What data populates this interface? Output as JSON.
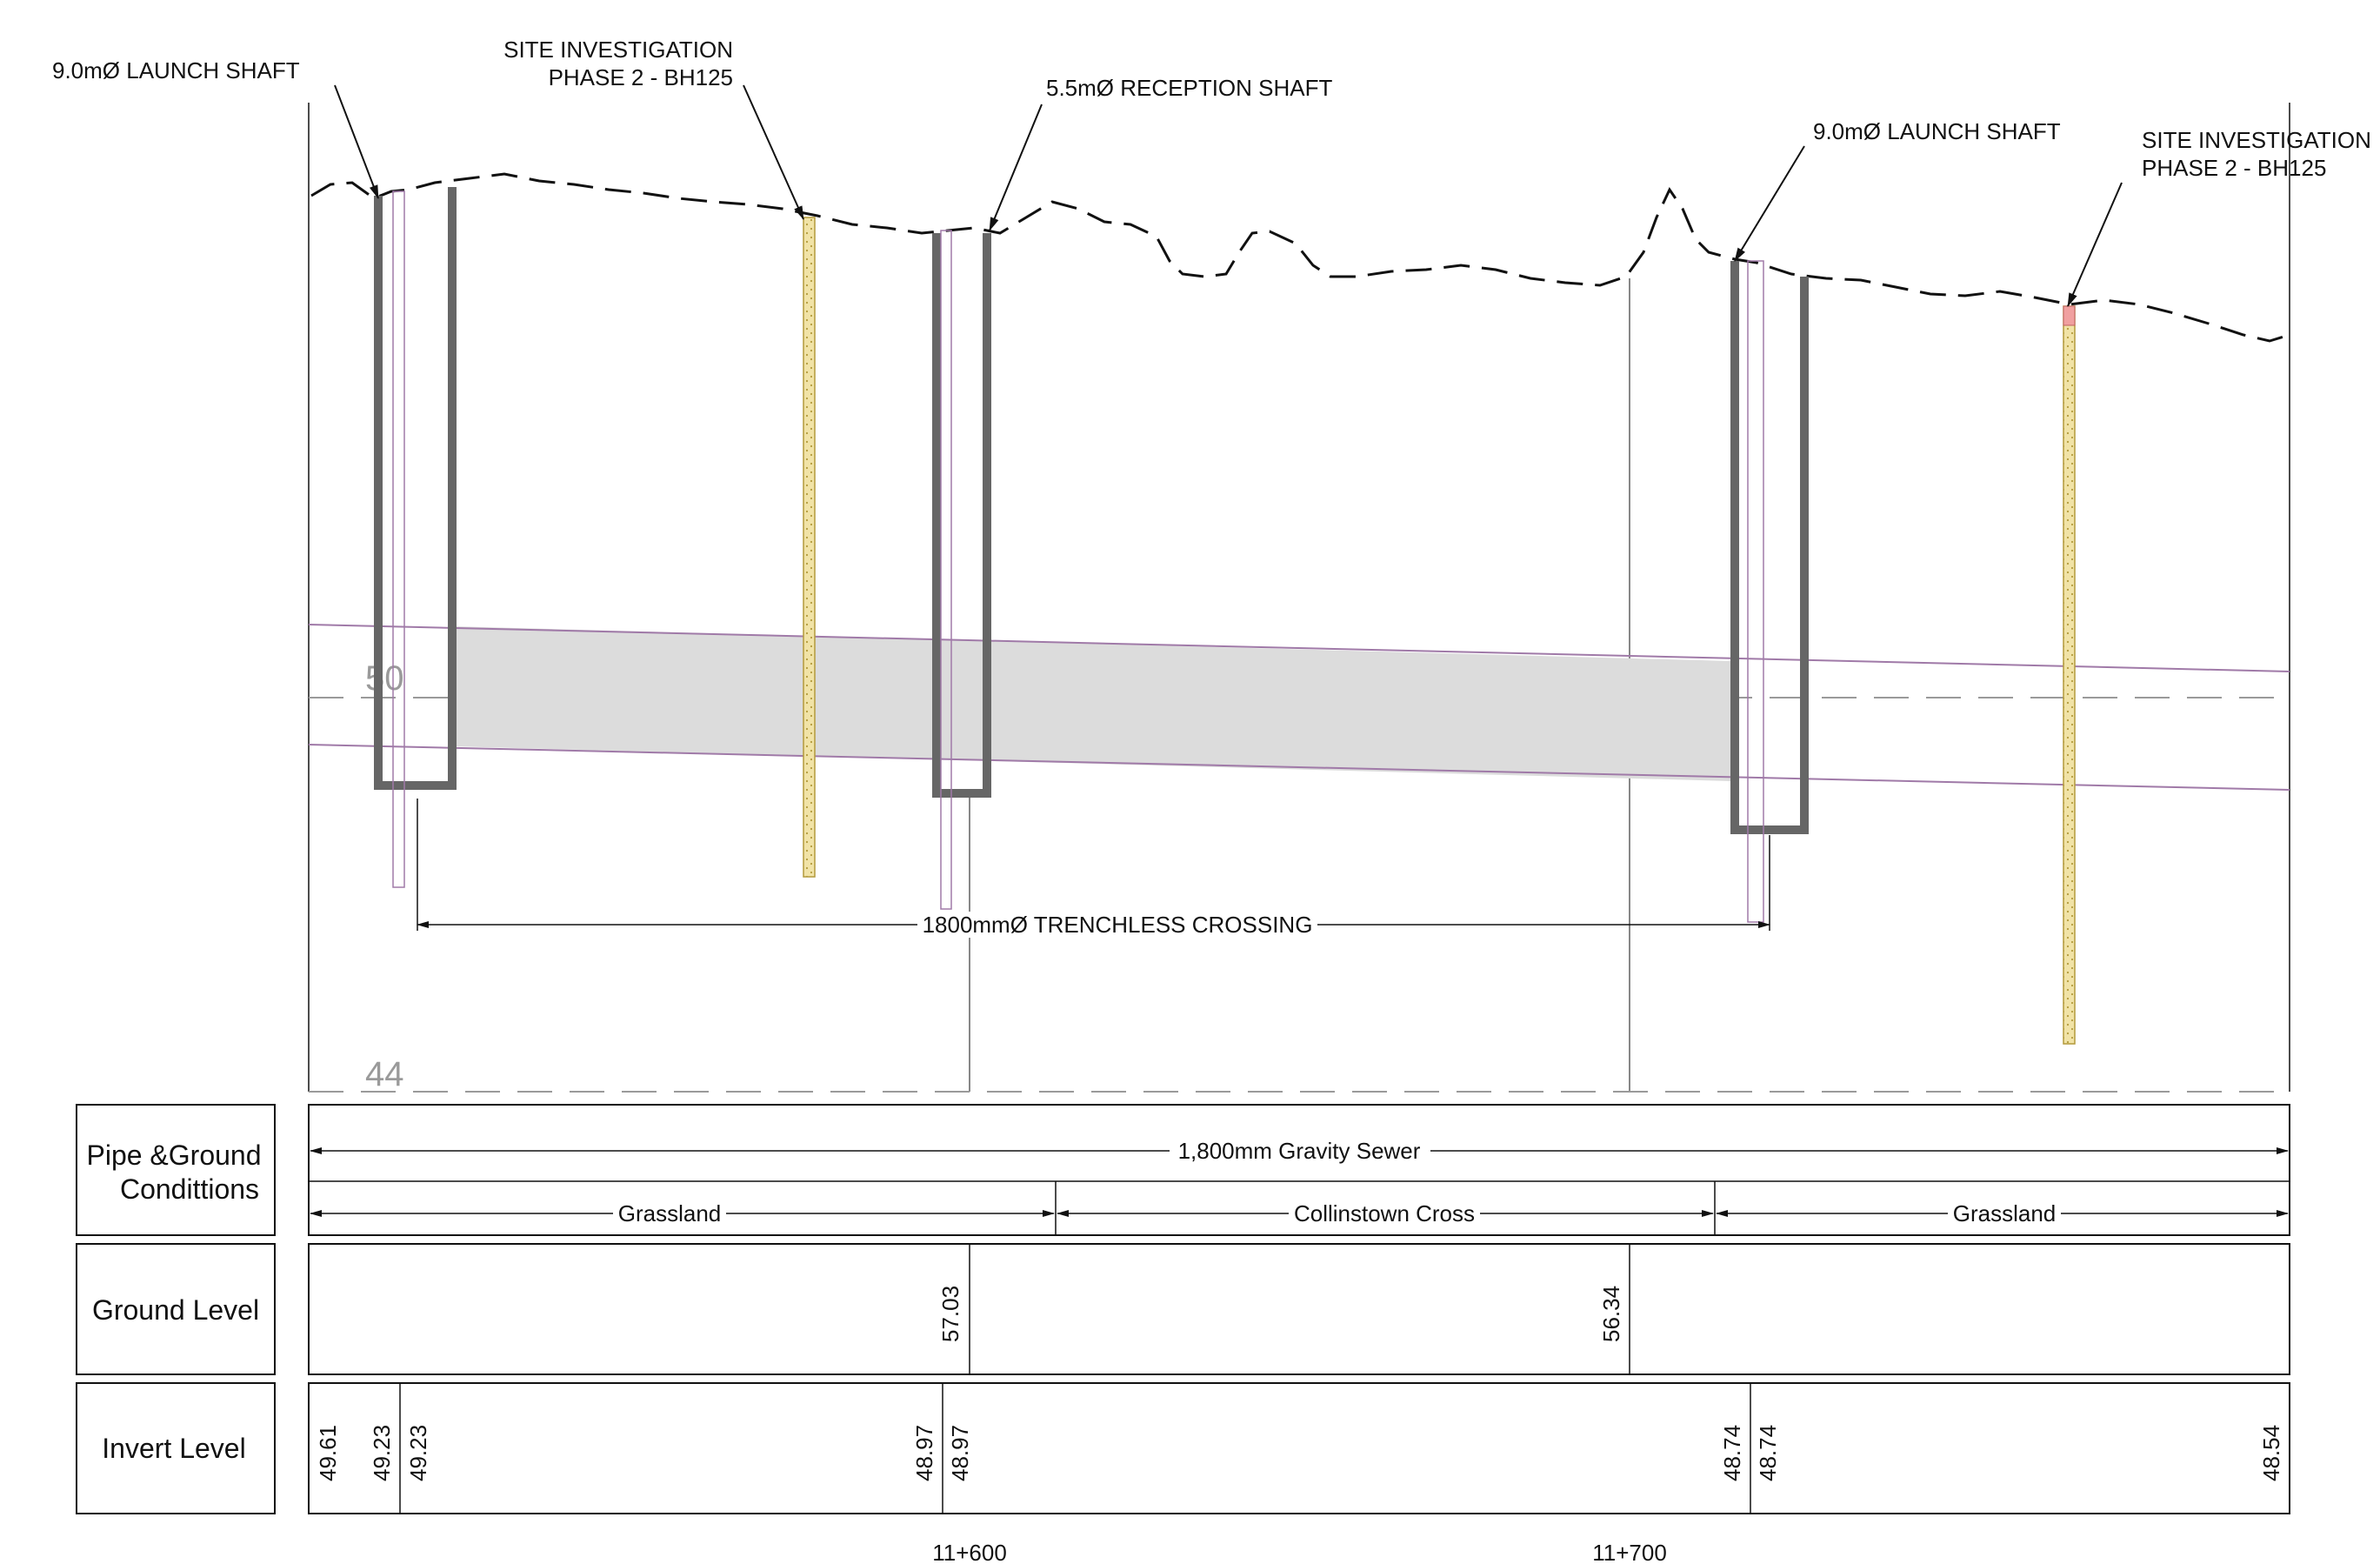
{
  "annotations": {
    "launch_shaft_1": "9.0mØ LAUNCH SHAFT",
    "si_1_line1": "SITE INVESTIGATION",
    "si_1_line2": "PHASE 2 - BH125",
    "reception_shaft": "5.5mØ RECEPTION SHAFT",
    "launch_shaft_2": "9.0mØ LAUNCH SHAFT",
    "si_2_line1": "SITE INVESTIGATION",
    "si_2_line2": "PHASE 2 - BH125",
    "crossing": "1800mmØ TRENCHLESS CROSSING"
  },
  "grid_levels": {
    "upper": "50",
    "lower": "44"
  },
  "table": {
    "pipe_row_label_1": "Pipe &Ground",
    "pipe_row_label_2": "Condittions",
    "pipe_span": "1,800mm Gravity Sewer",
    "segments": [
      "Grassland",
      "Collinstown Cross",
      "Grassland"
    ],
    "ground_row_label": "Ground Level",
    "ground_levels": [
      "57.03",
      "56.34"
    ],
    "invert_row_label": "Invert Level",
    "invert_levels": [
      "49.61",
      "49.23",
      "49.23",
      "48.97",
      "48.97",
      "48.74",
      "48.74",
      "48.54"
    ]
  },
  "chainages": [
    "11+600",
    "11+700"
  ],
  "colors": {
    "line": "#111111",
    "shaft": "#666666",
    "pipe_fill": "#dcdcdc",
    "pipe_edge": "#a07aa8",
    "borehole_fill": "#f1e3a6",
    "borehole_top": "#f0a0a0",
    "grid": "#9a9a9a"
  }
}
